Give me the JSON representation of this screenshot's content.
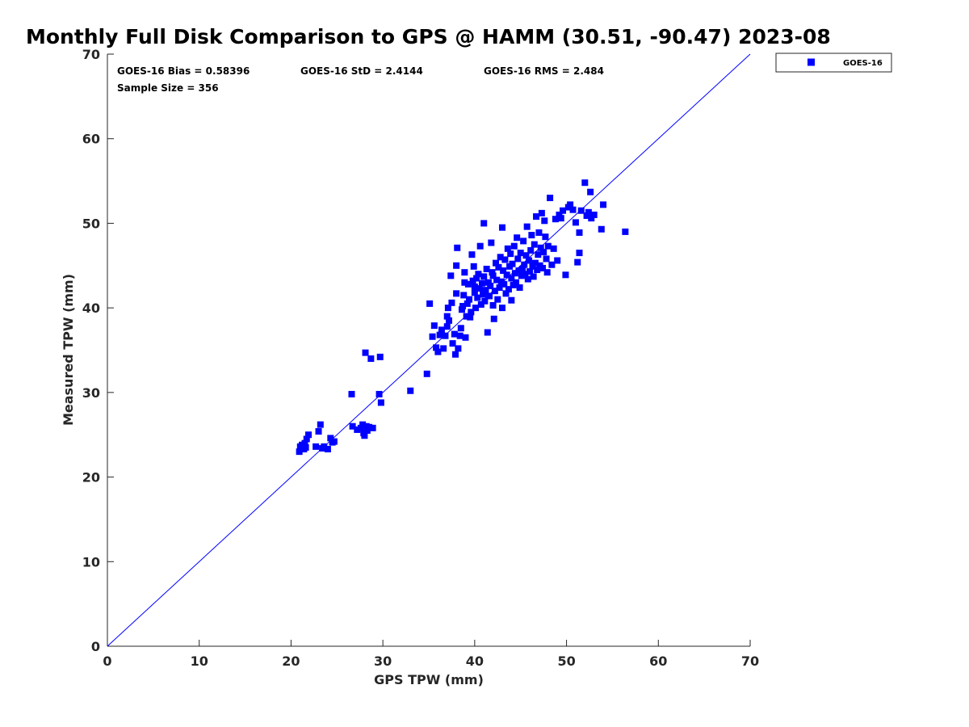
{
  "colors": {
    "series": "#0000ff",
    "axis": "#262626",
    "background": "#ffffff"
  },
  "chart_data": {
    "type": "scatter",
    "title": "Monthly Full Disk Comparison to GPS @ HAMM (30.51, -90.47) 2023-08",
    "xlabel": "GPS TPW (mm)",
    "ylabel": "Measured TPW (mm)",
    "xlim": [
      0,
      70
    ],
    "ylim": [
      0,
      70
    ],
    "xticks": [
      0,
      10,
      20,
      30,
      40,
      50,
      60,
      70
    ],
    "yticks": [
      0,
      10,
      20,
      30,
      40,
      50,
      60,
      70
    ],
    "grid": false,
    "legend_position": "outside top-right",
    "reference_line": {
      "from": [
        0,
        0
      ],
      "to": [
        70,
        70
      ]
    },
    "stats": {
      "bias": "GOES-16 Bias = 0.58396",
      "std": "GOES-16 StD = 2.4144",
      "rms": "GOES-16 RMS = 2.484",
      "sample": "Sample Size = 356"
    },
    "series": [
      {
        "name": "GOES-16",
        "marker": "square",
        "points": [
          [
            20.9,
            23.0
          ],
          [
            21.0,
            23.6
          ],
          [
            21.2,
            23.8
          ],
          [
            21.4,
            23.3
          ],
          [
            21.5,
            24.0
          ],
          [
            21.7,
            24.5
          ],
          [
            21.9,
            25.0
          ],
          [
            21.6,
            23.5
          ],
          [
            22.7,
            23.6
          ],
          [
            23.0,
            25.4
          ],
          [
            23.2,
            26.2
          ],
          [
            23.4,
            23.4
          ],
          [
            23.6,
            23.6
          ],
          [
            24.0,
            23.3
          ],
          [
            24.3,
            24.6
          ],
          [
            24.5,
            24.1
          ],
          [
            24.7,
            24.2
          ],
          [
            26.6,
            29.8
          ],
          [
            26.7,
            26.0
          ],
          [
            27.2,
            25.6
          ],
          [
            27.6,
            25.8
          ],
          [
            27.8,
            26.2
          ],
          [
            27.9,
            25.2
          ],
          [
            28.0,
            24.9
          ],
          [
            28.2,
            26.0
          ],
          [
            28.3,
            25.5
          ],
          [
            28.5,
            25.9
          ],
          [
            28.7,
            34.0
          ],
          [
            28.9,
            25.8
          ],
          [
            28.1,
            34.7
          ],
          [
            29.7,
            34.2
          ],
          [
            29.6,
            29.8
          ],
          [
            29.8,
            28.8
          ],
          [
            33.0,
            30.2
          ],
          [
            34.8,
            32.2
          ],
          [
            35.1,
            40.5
          ],
          [
            35.4,
            36.6
          ],
          [
            35.6,
            37.9
          ],
          [
            35.8,
            35.3
          ],
          [
            36.0,
            34.8
          ],
          [
            36.2,
            36.8
          ],
          [
            36.4,
            37.4
          ],
          [
            36.6,
            35.2
          ],
          [
            36.8,
            36.7
          ],
          [
            37.0,
            37.8
          ],
          [
            37.0,
            39.0
          ],
          [
            37.1,
            40.0
          ],
          [
            37.2,
            38.5
          ],
          [
            37.4,
            43.8
          ],
          [
            37.5,
            40.6
          ],
          [
            37.6,
            35.8
          ],
          [
            37.8,
            36.9
          ],
          [
            37.9,
            34.5
          ],
          [
            38.0,
            41.7
          ],
          [
            38.0,
            45.0
          ],
          [
            38.1,
            47.1
          ],
          [
            38.2,
            35.2
          ],
          [
            38.4,
            36.7
          ],
          [
            38.5,
            37.6
          ],
          [
            38.6,
            39.8
          ],
          [
            38.7,
            40.2
          ],
          [
            38.8,
            41.5
          ],
          [
            38.9,
            43.0
          ],
          [
            38.9,
            44.2
          ],
          [
            39.0,
            36.5
          ],
          [
            39.1,
            39.0
          ],
          [
            39.2,
            40.5
          ],
          [
            39.3,
            42.8
          ],
          [
            39.4,
            41.0
          ],
          [
            39.5,
            38.9
          ],
          [
            39.6,
            39.5
          ],
          [
            39.7,
            46.3
          ],
          [
            39.8,
            43.2
          ],
          [
            39.9,
            44.9
          ],
          [
            40.0,
            41.8
          ],
          [
            40.0,
            42.5
          ],
          [
            40.1,
            40.0
          ],
          [
            40.2,
            43.5
          ],
          [
            40.3,
            41.2
          ],
          [
            40.4,
            44.0
          ],
          [
            40.5,
            42.3
          ],
          [
            40.6,
            47.3
          ],
          [
            40.7,
            40.4
          ],
          [
            40.8,
            42.9
          ],
          [
            40.9,
            41.6
          ],
          [
            41.0,
            50.0
          ],
          [
            41.0,
            43.7
          ],
          [
            41.1,
            40.8
          ],
          [
            41.2,
            42.1
          ],
          [
            41.3,
            44.6
          ],
          [
            41.4,
            37.1
          ],
          [
            41.5,
            43.0
          ],
          [
            41.6,
            41.4
          ],
          [
            41.7,
            42.6
          ],
          [
            41.8,
            47.7
          ],
          [
            41.9,
            44.2
          ],
          [
            42.0,
            40.3
          ],
          [
            42.0,
            43.8
          ],
          [
            42.1,
            38.7
          ],
          [
            42.2,
            42.0
          ],
          [
            42.3,
            45.3
          ],
          [
            42.4,
            43.3
          ],
          [
            42.5,
            41.0
          ],
          [
            42.6,
            44.8
          ],
          [
            42.7,
            42.4
          ],
          [
            42.8,
            46.0
          ],
          [
            42.9,
            43.1
          ],
          [
            43.0,
            49.5
          ],
          [
            43.0,
            40.0
          ],
          [
            43.1,
            44.4
          ],
          [
            43.2,
            42.8
          ],
          [
            43.3,
            45.7
          ],
          [
            43.4,
            41.7
          ],
          [
            43.5,
            43.9
          ],
          [
            43.6,
            47.0
          ],
          [
            43.7,
            42.2
          ],
          [
            43.8,
            44.9
          ],
          [
            43.9,
            46.4
          ],
          [
            44.0,
            43.5
          ],
          [
            44.0,
            40.9
          ],
          [
            44.1,
            45.2
          ],
          [
            44.2,
            42.7
          ],
          [
            44.3,
            47.3
          ],
          [
            44.4,
            44.1
          ],
          [
            44.5,
            43.0
          ],
          [
            44.6,
            48.3
          ],
          [
            44.7,
            45.8
          ],
          [
            44.8,
            44.4
          ],
          [
            44.9,
            42.4
          ],
          [
            45.0,
            46.5
          ],
          [
            45.1,
            43.8
          ],
          [
            45.2,
            44.6
          ],
          [
            45.3,
            47.9
          ],
          [
            45.4,
            45.1
          ],
          [
            45.5,
            44.0
          ],
          [
            45.6,
            46.2
          ],
          [
            45.7,
            49.6
          ],
          [
            45.8,
            43.4
          ],
          [
            45.9,
            45.6
          ],
          [
            46.0,
            44.3
          ],
          [
            46.1,
            46.8
          ],
          [
            46.2,
            48.6
          ],
          [
            46.3,
            44.9
          ],
          [
            46.4,
            43.7
          ],
          [
            46.5,
            47.5
          ],
          [
            46.6,
            45.3
          ],
          [
            46.7,
            50.8
          ],
          [
            46.8,
            44.5
          ],
          [
            46.9,
            46.3
          ],
          [
            47.0,
            48.9
          ],
          [
            47.1,
            45.0
          ],
          [
            47.2,
            47.1
          ],
          [
            47.3,
            51.2
          ],
          [
            47.4,
            44.7
          ],
          [
            47.5,
            46.6
          ],
          [
            47.6,
            50.3
          ],
          [
            47.7,
            48.4
          ],
          [
            47.8,
            45.8
          ],
          [
            47.9,
            44.2
          ],
          [
            48.0,
            47.3
          ],
          [
            48.2,
            53.0
          ],
          [
            48.4,
            45.1
          ],
          [
            48.6,
            47.0
          ],
          [
            48.8,
            50.5
          ],
          [
            49.0,
            45.6
          ],
          [
            49.2,
            51.0
          ],
          [
            49.4,
            50.6
          ],
          [
            49.6,
            51.5
          ],
          [
            49.9,
            43.9
          ],
          [
            50.2,
            51.9
          ],
          [
            50.4,
            52.2
          ],
          [
            50.7,
            51.6
          ],
          [
            51.0,
            50.1
          ],
          [
            51.2,
            45.4
          ],
          [
            51.4,
            46.5
          ],
          [
            51.4,
            48.9
          ],
          [
            51.6,
            51.5
          ],
          [
            52.0,
            54.8
          ],
          [
            52.2,
            50.9
          ],
          [
            52.4,
            51.3
          ],
          [
            52.6,
            53.7
          ],
          [
            52.7,
            50.6
          ],
          [
            53.0,
            51.0
          ],
          [
            53.8,
            49.3
          ],
          [
            54.0,
            52.2
          ],
          [
            56.4,
            49.0
          ]
        ]
      }
    ]
  }
}
